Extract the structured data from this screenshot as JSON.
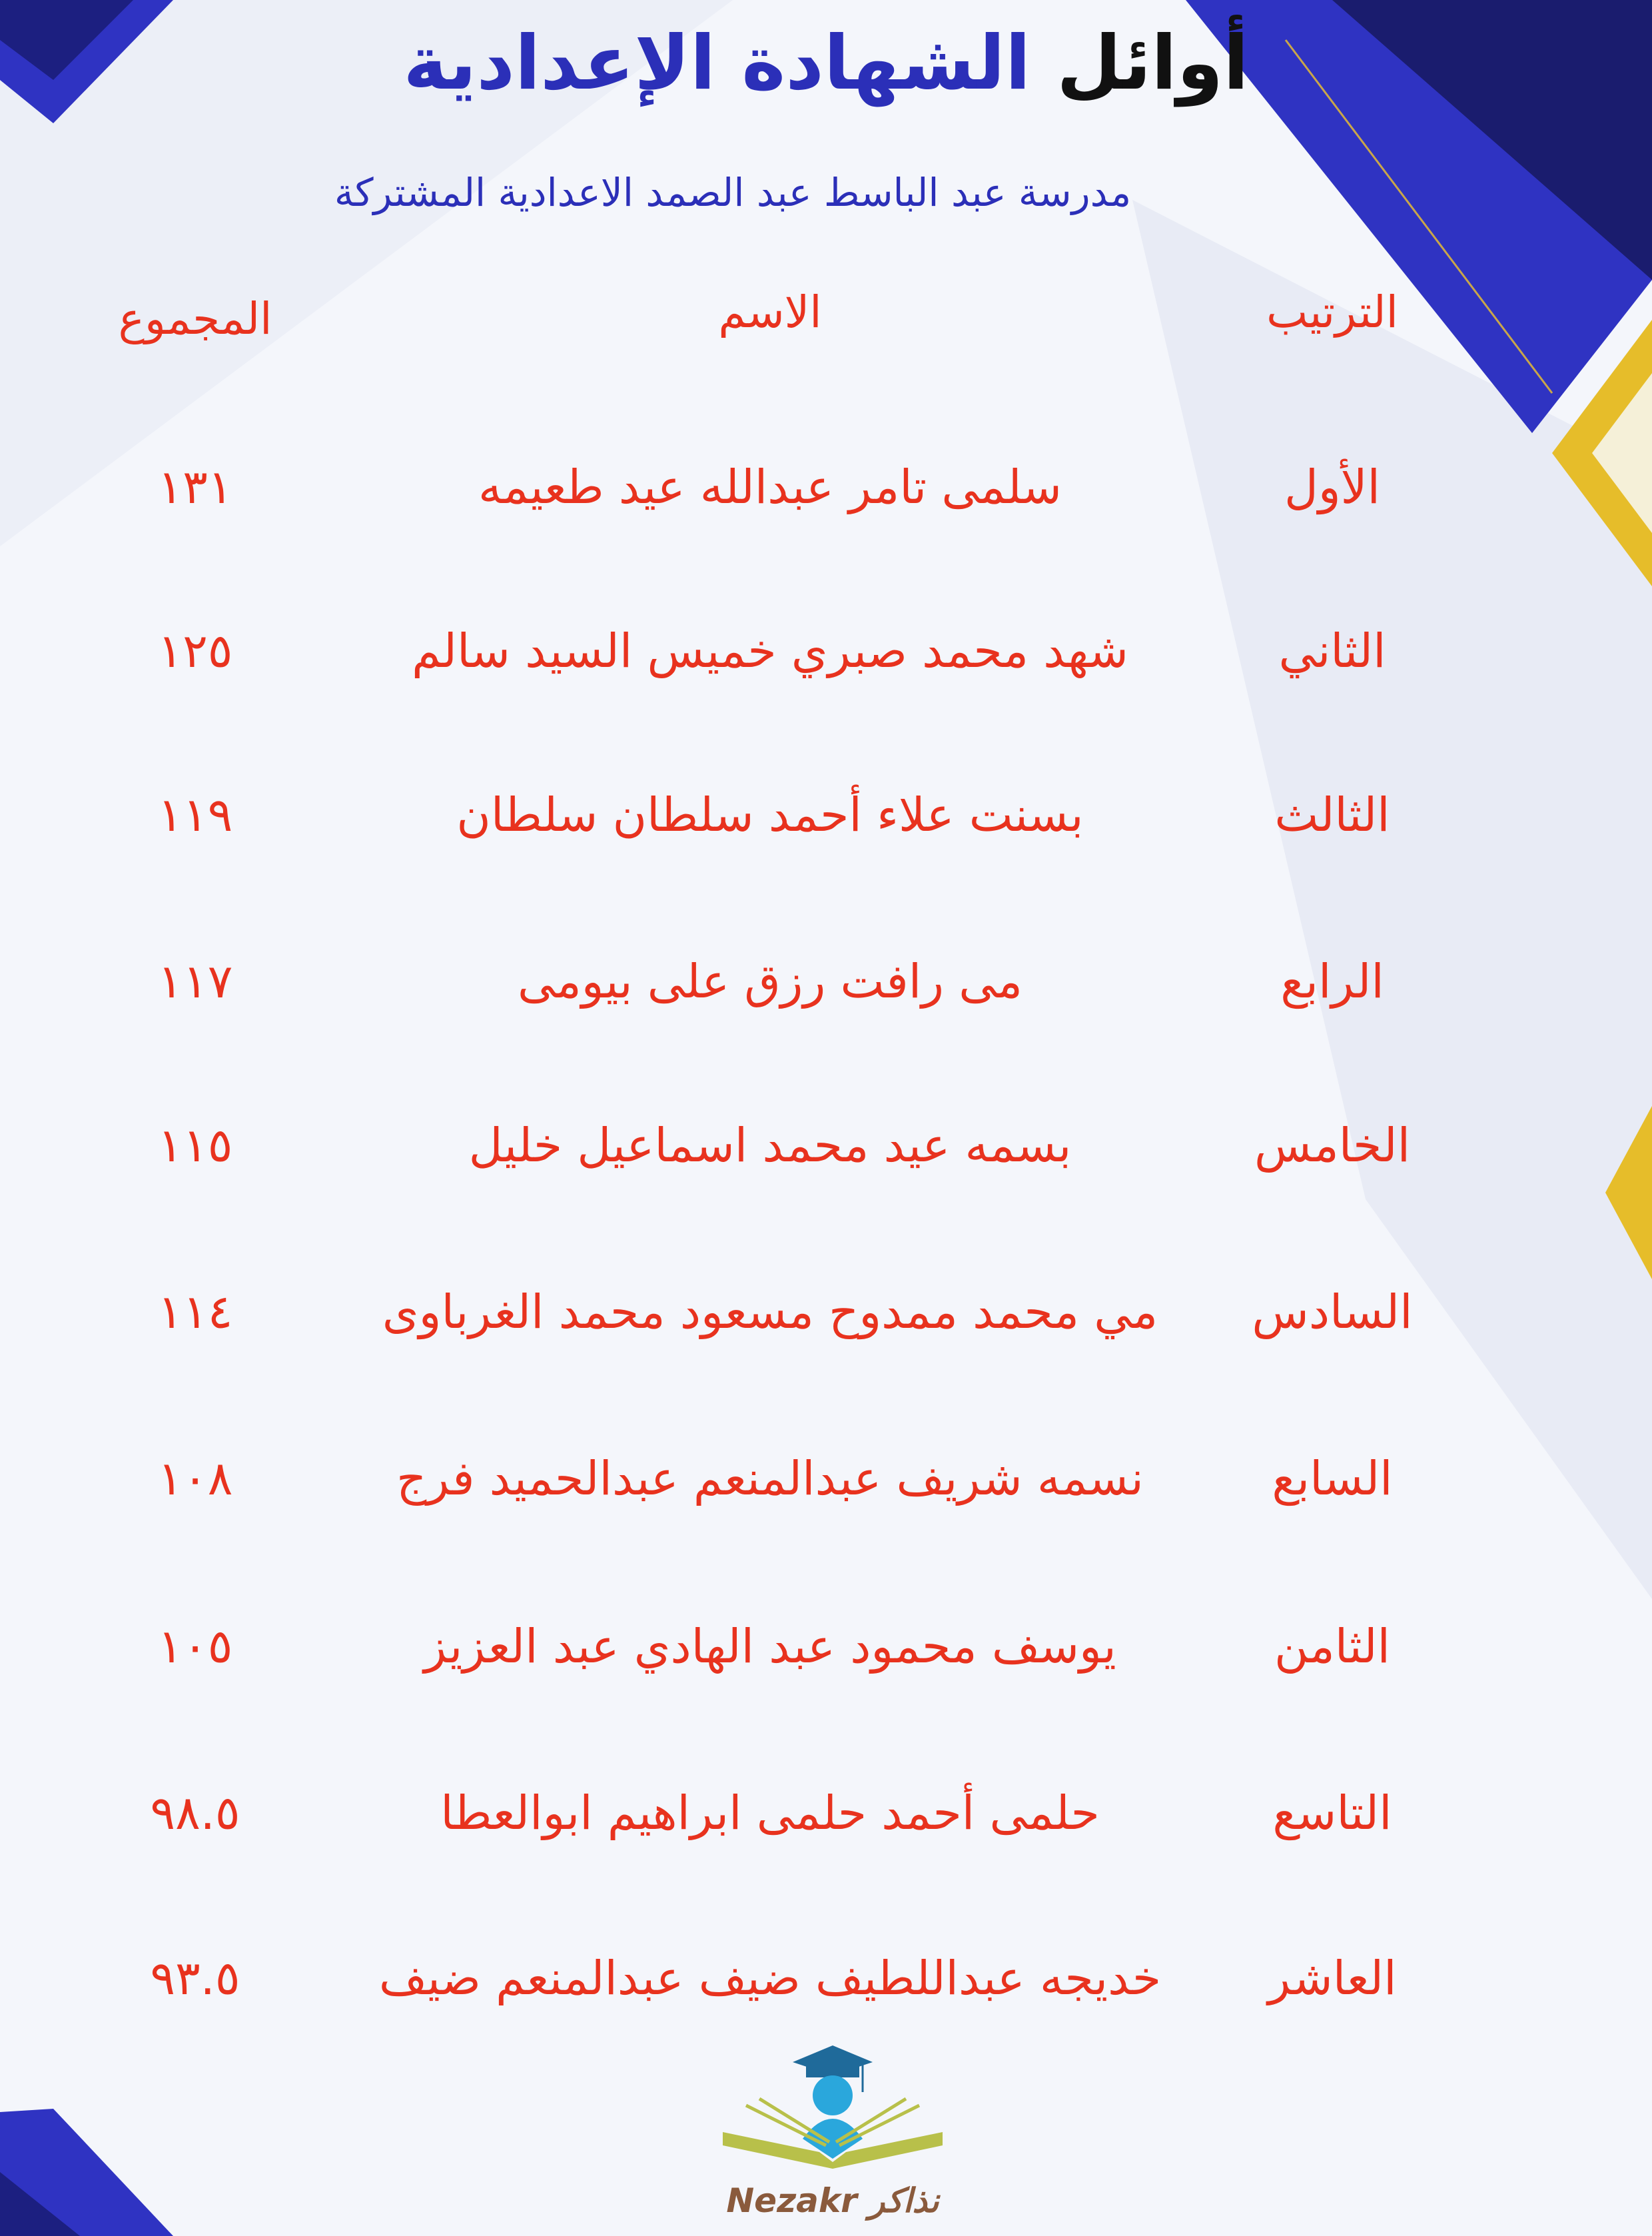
{
  "header": {
    "title_part1": "أوائل",
    "title_part2": "الشهادة الإعدادية",
    "school": "مدرسة عبد الباسط عبد الصمد الاعدادية المشتركة"
  },
  "columns": {
    "rank": "الترتيب",
    "name": "الاسم",
    "total": "المجموع"
  },
  "rows": [
    {
      "rank": "الأول",
      "name": "سلمى تامر عبدالله عيد طعيمه",
      "total": "١٣١"
    },
    {
      "rank": "الثاني",
      "name": "شهد محمد صبري خميس السيد سالم",
      "total": "١٢٥"
    },
    {
      "rank": "الثالث",
      "name": "بسنت علاء أحمد سلطان سلطان",
      "total": "١١٩"
    },
    {
      "rank": "الرابع",
      "name": "مى رافت رزق على بيومى",
      "total": "١١٧"
    },
    {
      "rank": "الخامس",
      "name": "بسمه عيد محمد اسماعيل خليل",
      "total": "١١٥"
    },
    {
      "rank": "السادس",
      "name": "مي محمد ممدوح مسعود محمد الغرباوى",
      "total": "١١٤"
    },
    {
      "rank": "السابع",
      "name": "نسمه شريف عبدالمنعم عبدالحميد فرج",
      "total": "١٠٨"
    },
    {
      "rank": "الثامن",
      "name": "يوسف محمود عبد الهادي عبد العزيز",
      "total": "١٠٥"
    },
    {
      "rank": "التاسع",
      "name": "حلمى أحمد حلمى ابراهيم ابوالعطا",
      "total": "٩٨.٥"
    },
    {
      "rank": "العاشر",
      "name": "خديجه عبداللطيف ضيف عبدالمنعم ضيف",
      "total": "٩٣.٥"
    }
  ],
  "logo": {
    "text": "Nezakr نذاكر"
  },
  "colors": {
    "accent_blue": "#2b2fb8",
    "text_red": "#e8321e",
    "gold": "#e6bd2a",
    "logo_brown": "#8a5a3c"
  }
}
